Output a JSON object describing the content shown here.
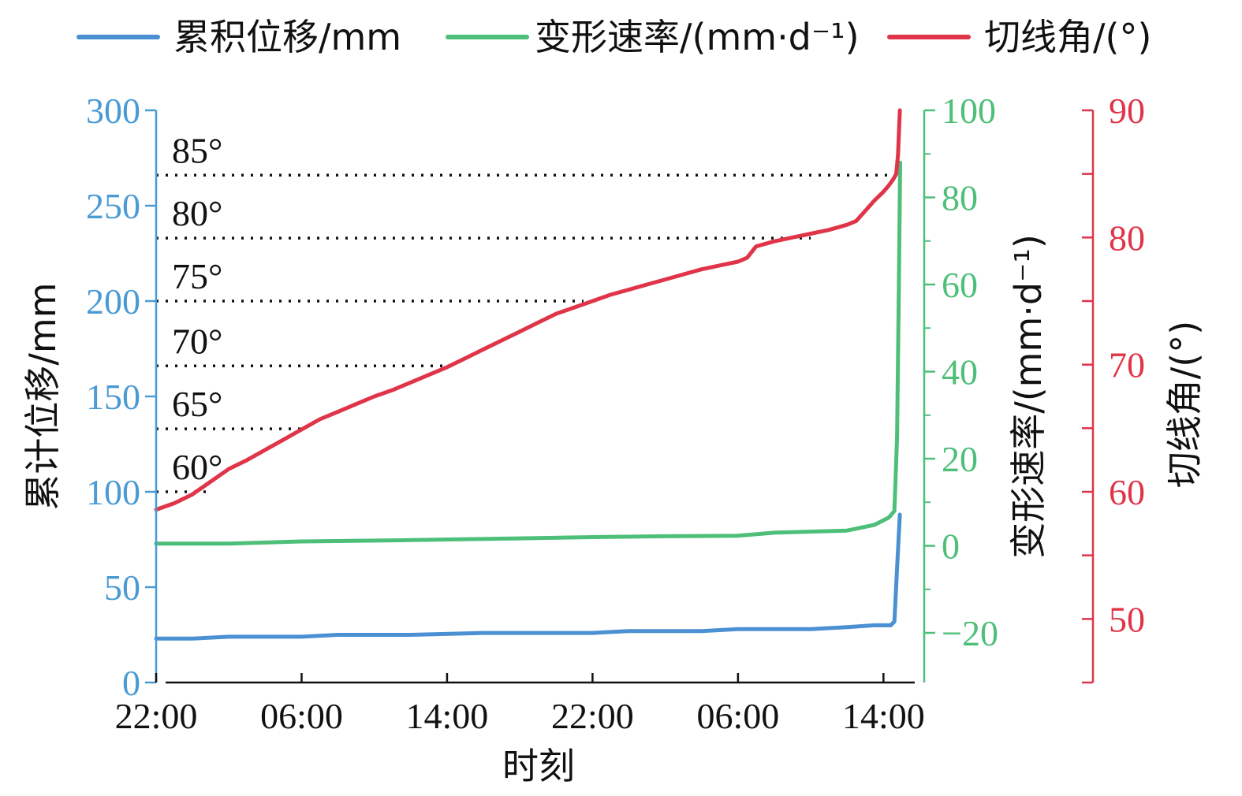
{
  "chart_data": {
    "type": "line",
    "xlabel": "时刻",
    "x_ticks": [
      "22:00",
      "06:00",
      "14:00",
      "22:00",
      "06:00",
      "14:00"
    ],
    "x_tick_hours": [
      0,
      8,
      16,
      24,
      32,
      40
    ],
    "xlim": [
      0,
      41.2
    ],
    "legend_position": "top",
    "series": [
      {
        "name": "累积位移/mm",
        "axis": "left",
        "color": "#4a90d2",
        "x": [
          0,
          2,
          4,
          8,
          10,
          14,
          18,
          24,
          26,
          30,
          32,
          36,
          38,
          39.5,
          40.4,
          40.6,
          40.75,
          40.9
        ],
        "values": [
          23,
          23,
          24,
          24,
          25,
          25,
          26,
          26,
          27,
          27,
          28,
          28,
          29,
          30,
          30,
          32,
          60,
          88
        ]
      },
      {
        "name": "变形速率/(mm·d⁻¹)",
        "axis": "right1",
        "color": "#4dbf78",
        "x": [
          0,
          4,
          8,
          14,
          20,
          24,
          28,
          32,
          34,
          38,
          39.5,
          40.3,
          40.6,
          40.75,
          40.85,
          40.92
        ],
        "values": [
          0.5,
          0.5,
          1,
          1.3,
          1.7,
          2,
          2.2,
          2.3,
          3,
          3.5,
          4.8,
          6.5,
          8,
          25,
          60,
          88
        ]
      },
      {
        "name": "切线角/(°)",
        "axis": "right2",
        "color": "#e03448",
        "x": [
          0,
          1,
          2,
          3,
          4,
          5,
          6,
          7,
          8,
          9,
          10,
          11,
          12,
          13,
          14,
          15,
          16,
          17,
          18,
          19,
          20,
          21,
          22,
          23,
          24,
          25,
          26,
          27,
          28,
          29,
          30,
          31,
          32,
          32.5,
          33,
          34,
          35,
          36,
          37,
          38,
          38.5,
          39,
          39.5,
          40,
          40.3,
          40.55,
          40.7,
          40.8,
          40.9
        ],
        "values": [
          58.6,
          59.1,
          59.8,
          60.8,
          61.8,
          62.5,
          63.3,
          64.1,
          64.9,
          65.7,
          66.3,
          66.9,
          67.5,
          68.0,
          68.6,
          69.2,
          69.8,
          70.5,
          71.2,
          71.9,
          72.6,
          73.3,
          74.0,
          74.5,
          75.0,
          75.5,
          75.9,
          76.3,
          76.7,
          77.1,
          77.5,
          77.8,
          78.1,
          78.4,
          79.3,
          79.7,
          80.0,
          80.3,
          80.6,
          81.0,
          81.3,
          82.1,
          82.9,
          83.6,
          84.1,
          84.6,
          85.0,
          86.5,
          90.0
        ]
      }
    ],
    "axes": {
      "left": {
        "label": "累计位移/mm",
        "ylim": [
          0,
          300
        ],
        "ticks": [
          0,
          50,
          100,
          150,
          200,
          250,
          300
        ],
        "color": "#4a9ad4"
      },
      "right1": {
        "label": "变形速率/(mm·d⁻¹)",
        "ylim": [
          -31.4,
          100
        ],
        "ticks": [
          -20,
          0,
          20,
          40,
          60,
          80,
          100
        ],
        "tick_labels": [
          "−20",
          "0",
          "20",
          "40",
          "60",
          "80",
          "100"
        ],
        "color": "#4dbf78"
      },
      "right2": {
        "label": "切线角/(°)",
        "ylim": [
          45,
          90
        ],
        "ticks": [
          50,
          60,
          70,
          80,
          90
        ],
        "minor_ticks": [
          45,
          55,
          65,
          75,
          85
        ],
        "color": "#e03448"
      }
    },
    "reference_lines": [
      {
        "label": "60°",
        "value": 100,
        "end_x": 3.0
      },
      {
        "label": "65°",
        "value": 133,
        "end_x": 8.0
      },
      {
        "label": "70°",
        "value": 166,
        "end_x": 16.3
      },
      {
        "label": "75°",
        "value": 200,
        "end_x": 23.5
      },
      {
        "label": "80°",
        "value": 233,
        "end_x": 36.0
      },
      {
        "label": "85°",
        "value": 266,
        "end_x": 40.7
      }
    ]
  }
}
